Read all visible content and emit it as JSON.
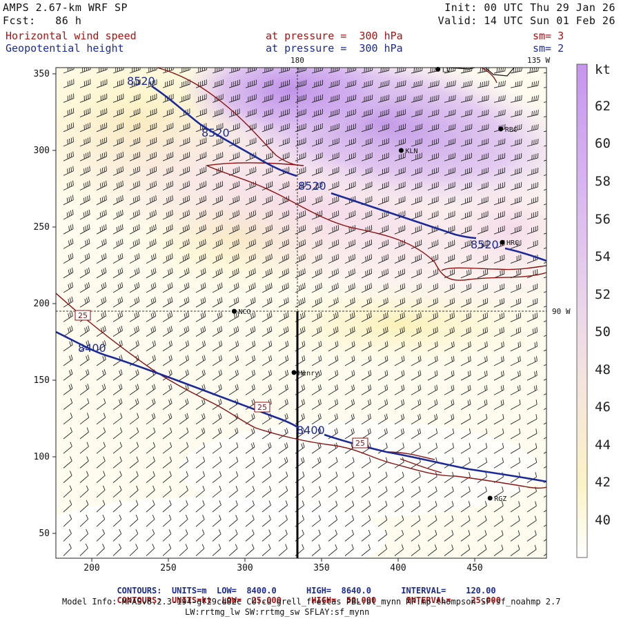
{
  "header": {
    "model": "AMPS 2.67-km WRF SP",
    "forecast": "Fcst:   86 h",
    "init": "Init: 00 UTC Thu 29 Jan 26",
    "valid": "Valid: 14 UTC Sun 01 Feb 26",
    "field1": {
      "name": "Horizontal wind speed",
      "level": "at pressure =  300 hPa",
      "sm": "sm= 3"
    },
    "field2": {
      "name": "Geopotential height",
      "level": "at pressure =  300 hPa",
      "sm": "sm= 2"
    }
  },
  "map_labels": {
    "meridian_180": "180",
    "meridian_135w": "135 W",
    "meridian_90w": "90 W"
  },
  "stations": [
    {
      "name": "RBC",
      "x": 467,
      "y": 314
    },
    {
      "name": "KLN",
      "x": 402,
      "y": 300
    },
    {
      "name": "HRC",
      "x": 468,
      "y": 240
    },
    {
      "name": "NCO",
      "x": 293,
      "y": 195
    },
    {
      "name": "Henry",
      "x": 332,
      "y": 155
    },
    {
      "name": "RGZ",
      "x": 460,
      "y": 73
    },
    {
      "name": "LV",
      "x": 426,
      "y": 353
    }
  ],
  "contour_labels": {
    "height_high": "8520",
    "height_low": "8400",
    "wind": "25"
  },
  "colorbar": {
    "unit": "kt",
    "ticks": [
      "62",
      "60",
      "58",
      "56",
      "54",
      "52",
      "50",
      "48",
      "46",
      "44",
      "42",
      "40"
    ]
  },
  "axes": {
    "x_ticks": [
      "200",
      "250",
      "300",
      "350",
      "400",
      "450"
    ],
    "y_ticks": [
      "350",
      "300",
      "250",
      "200",
      "150",
      "100",
      "50"
    ]
  },
  "footer": {
    "contour1": {
      "label": "CONTOURS:",
      "units": "UNITS=m",
      "low": "LOW=  8400.0",
      "high": "HIGH=  8640.0",
      "interval": "INTERVAL=    120.00"
    },
    "contour2": {
      "label": "CONTOURS:",
      "units": "UNITS=kt",
      "low": "LOW=  25.000",
      "high": "HIGH=  50.000",
      "interval": "INTERVAL=    25.000"
    },
    "model_info": "Model Info: MPASv8.2.3-194-gf29cd82c CU:cu_grell_freitas PBL:bl_mynn MP:mp_thompson SF:sf_noahmp 2.7",
    "model_info2": "LW:rrtmg_lw SW:rrtmg_sw SFLAY:sf_mynn"
  },
  "colors": {
    "height_contour": "#1a2a9a",
    "wind_contour": "#8b1010",
    "shade_high": "#c9a0f0",
    "shade_low": "#fffbe0"
  }
}
